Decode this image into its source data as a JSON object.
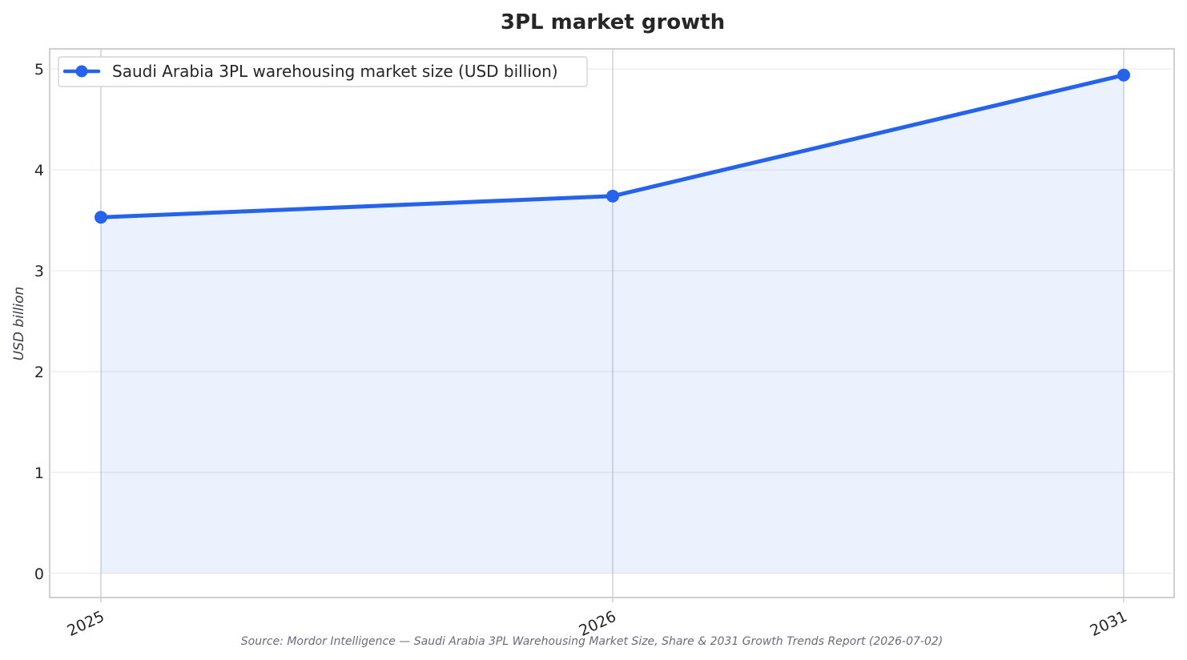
{
  "chart_data": {
    "type": "line",
    "title": "3PL market growth",
    "xlabel": "",
    "ylabel": "USD billion",
    "categories": [
      "2025",
      "2026",
      "2031"
    ],
    "series": [
      {
        "name": "Saudi Arabia 3PL warehousing market size (USD billion)",
        "values": [
          3.53,
          3.74,
          4.94
        ],
        "color": "#2563eb"
      }
    ],
    "ylim": [
      -0.24,
      5.2
    ],
    "yticks": [
      0,
      1,
      2,
      3,
      4,
      5
    ],
    "grid": true,
    "legend": "top-left",
    "area_fill": true,
    "source": "Source: Mordor Intelligence — Saudi Arabia 3PL Warehousing Market Size, Share & 2031 Growth Trends Report (2026-07-02)"
  }
}
